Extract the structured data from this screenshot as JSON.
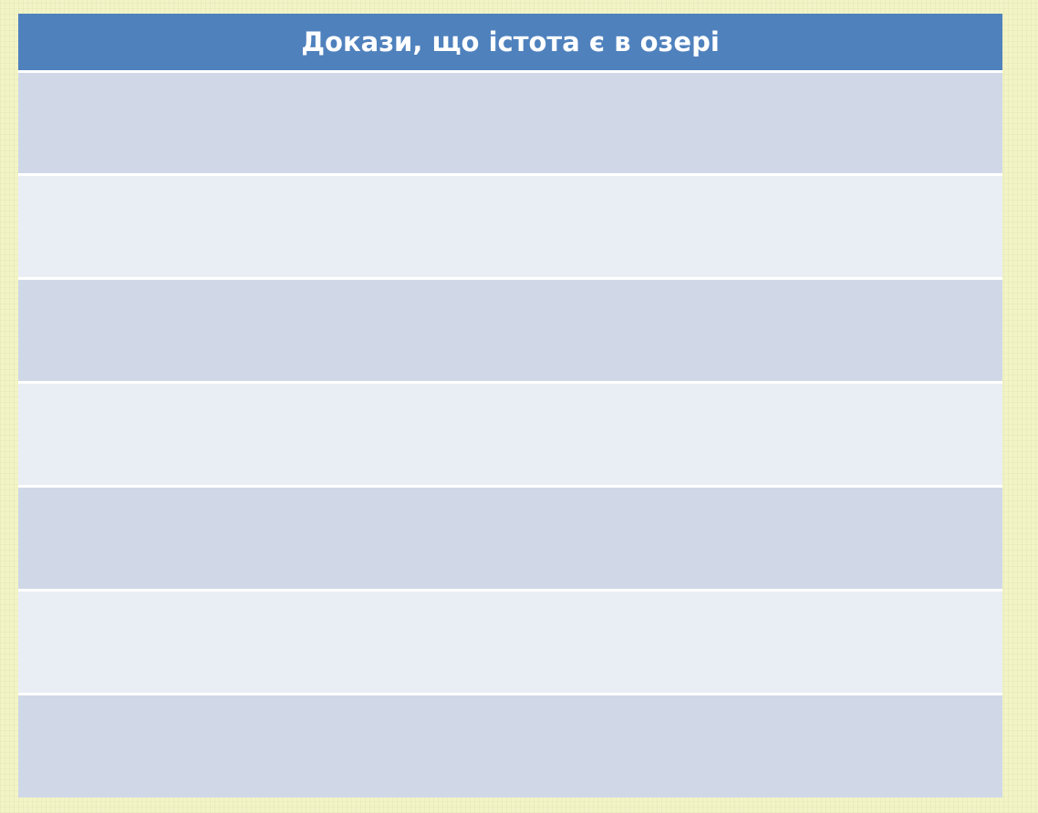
{
  "table": {
    "header": "Докази, що істота є в озері",
    "rows": [
      "",
      "",
      "",
      "",
      "",
      "",
      ""
    ]
  },
  "colors": {
    "header_bg": "#4f81bd",
    "row_dark": "#d0d8e8",
    "row_light": "#e9edf4",
    "background": "#f2f4c6"
  }
}
